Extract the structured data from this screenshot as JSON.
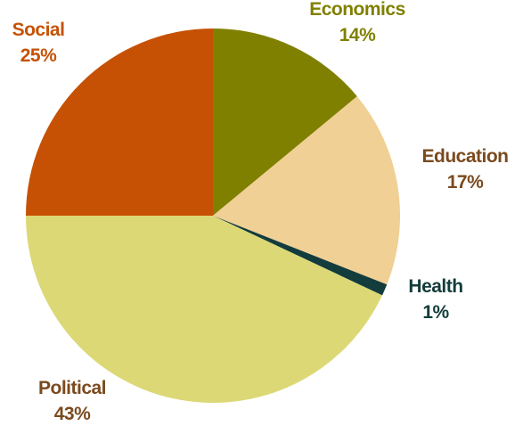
{
  "chart_data": {
    "type": "pie",
    "start_angle_deg": 0,
    "direction": "clockwise",
    "slices": [
      {
        "label": "Economics",
        "value": 14,
        "value_label": "14%",
        "color": "#808000",
        "label_color": "#808000"
      },
      {
        "label": "Education",
        "value": 17,
        "value_label": "17%",
        "color": "#F0D094",
        "label_color": "#7A4A1E"
      },
      {
        "label": "Health",
        "value": 1,
        "value_label": "1%",
        "color": "#133C3C",
        "label_color": "#133C3C"
      },
      {
        "label": "Political",
        "value": 43,
        "value_label": "43%",
        "color": "#DCD876",
        "label_color": "#7A4A1E"
      },
      {
        "label": "Social",
        "value": 25,
        "value_label": "25%",
        "color": "#C65104",
        "label_color": "#C65104"
      }
    ],
    "legend": "none"
  }
}
